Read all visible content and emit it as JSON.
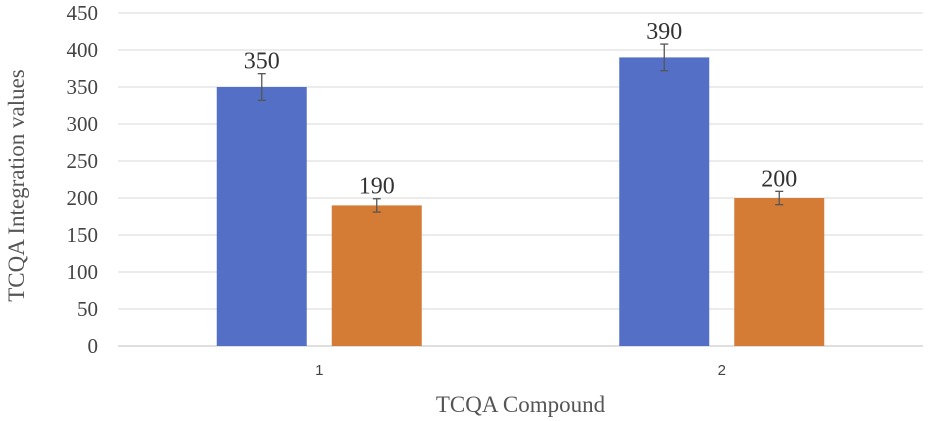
{
  "chart_data": {
    "type": "bar",
    "categories": [
      "1",
      "2"
    ],
    "series": [
      {
        "color": "#5470C6",
        "values": [
          350,
          390
        ],
        "errors": [
          18,
          18
        ],
        "labels": [
          "350",
          "390"
        ]
      },
      {
        "color": "#D47B36",
        "values": [
          190,
          200
        ],
        "errors": [
          9,
          9
        ],
        "labels": [
          "190",
          "200"
        ]
      }
    ],
    "title": "",
    "xlabel": "TCQA Compound",
    "ylabel": "TCQA Integration values",
    "ylim": [
      0,
      450
    ],
    "yticks": [
      0,
      50,
      100,
      150,
      200,
      250,
      300,
      350,
      400,
      450
    ],
    "grid": true,
    "legend": "none"
  }
}
